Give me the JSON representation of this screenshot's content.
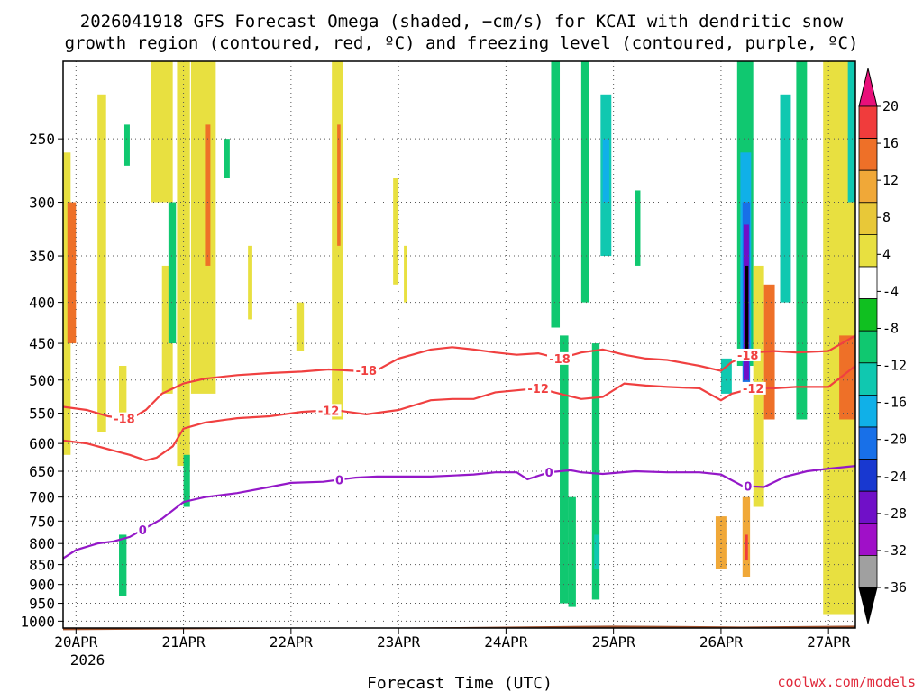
{
  "chart_data": {
    "type": "heatmap",
    "title_lines": [
      "2026041918 GFS Forecast Omega (shaded, −cm/s) for KCAI with dendritic snow",
      "growth region (contoured, red, ºC) and freezing level (contoured, purple, ºC)"
    ],
    "xlabel": "Forecast Time (UTC)",
    "credit": "coolwx.com/models",
    "x_ticks": [
      "20APR",
      "21APR",
      "22APR",
      "23APR",
      "24APR",
      "25APR",
      "26APR",
      "27APR"
    ],
    "x_year": "2026",
    "x_range_days": [
      -0.12,
      7.25
    ],
    "y_ticks": [
      250,
      300,
      350,
      400,
      450,
      500,
      550,
      600,
      650,
      700,
      750,
      800,
      850,
      900,
      950,
      1000
    ],
    "y_range_hpa": [
      200,
      1020
    ],
    "colorbar": {
      "labels": [
        "20",
        "16",
        "12",
        "8",
        "4",
        "-4",
        "-8",
        "-12",
        "-16",
        "-20",
        "-24",
        "-28",
        "-32",
        "-36"
      ],
      "colors": [
        "#e8107a",
        "#f03c3c",
        "#ee7028",
        "#f0a838",
        "#e8c838",
        "#e8e040",
        "#ffffff",
        "#10c020",
        "#10c870",
        "#10c8b0",
        "#10b0e8",
        "#1870e8",
        "#1838d0",
        "#7010c8",
        "#a010c8",
        "#a0a0a0",
        "#000000"
      ]
    },
    "series": [
      {
        "name": "-18",
        "color": "#f04040",
        "days": [
          -0.12,
          0.1,
          0.3,
          0.5,
          0.65,
          0.8,
          1.0,
          1.2,
          1.5,
          1.8,
          2.1,
          2.35,
          2.6,
          2.8,
          3.0,
          3.3,
          3.5,
          3.7,
          3.9,
          4.1,
          4.3,
          4.5,
          4.7,
          4.9,
          5.1,
          5.3,
          5.5,
          5.8,
          6.0,
          6.1,
          6.3,
          6.5,
          6.7,
          7.0,
          7.25
        ],
        "pressure_hpa": [
          540,
          545,
          555,
          560,
          545,
          520,
          505,
          498,
          493,
          490,
          488,
          485,
          487,
          486,
          470,
          458,
          455,
          458,
          462,
          465,
          463,
          470,
          462,
          458,
          465,
          470,
          472,
          480,
          487,
          475,
          462,
          460,
          462,
          460,
          440
        ],
        "labels": [
          {
            "text": "-18",
            "day": 0.45
          },
          {
            "text": "-18",
            "day": 2.7
          },
          {
            "text": "-18",
            "day": 4.5
          },
          {
            "text": "-18",
            "day": 6.25
          }
        ]
      },
      {
        "name": "-12",
        "color": "#f04040",
        "days": [
          -0.12,
          0.1,
          0.3,
          0.5,
          0.65,
          0.75,
          0.9,
          1.0,
          1.2,
          1.5,
          1.8,
          2.1,
          2.4,
          2.7,
          3.0,
          3.3,
          3.5,
          3.7,
          3.9,
          4.1,
          4.3,
          4.5,
          4.7,
          4.9,
          5.1,
          5.3,
          5.5,
          5.8,
          6.0,
          6.1,
          6.3,
          6.5,
          6.7,
          7.0,
          7.25
        ],
        "pressure_hpa": [
          595,
          600,
          610,
          620,
          630,
          625,
          605,
          575,
          565,
          558,
          555,
          548,
          545,
          552,
          545,
          530,
          528,
          528,
          518,
          515,
          512,
          520,
          528,
          525,
          505,
          508,
          510,
          512,
          530,
          520,
          512,
          512,
          510,
          510,
          480
        ],
        "labels": [
          {
            "text": "-12",
            "day": 2.35
          },
          {
            "text": "-12",
            "day": 4.3
          },
          {
            "text": "-12",
            "day": 6.3
          }
        ]
      },
      {
        "name": "0",
        "color": "#9418c8",
        "days": [
          -0.12,
          0.0,
          0.2,
          0.35,
          0.5,
          0.8,
          1.0,
          1.2,
          1.5,
          1.8,
          2.0,
          2.3,
          2.6,
          2.8,
          3.0,
          3.3,
          3.5,
          3.7,
          3.9,
          4.1,
          4.2,
          4.4,
          4.6,
          4.7,
          4.9,
          5.2,
          5.5,
          5.8,
          6.0,
          6.2,
          6.4,
          6.6,
          6.8,
          7.0,
          7.25
        ],
        "pressure_hpa": [
          835,
          815,
          800,
          795,
          785,
          745,
          710,
          700,
          692,
          680,
          672,
          670,
          662,
          660,
          660,
          660,
          658,
          656,
          652,
          652,
          665,
          652,
          648,
          652,
          655,
          650,
          652,
          652,
          656,
          678,
          680,
          660,
          650,
          645,
          640
        ],
        "labels": [
          {
            "text": "0",
            "day": 0.62
          },
          {
            "text": "0",
            "day": 2.45
          },
          {
            "text": "0",
            "day": 4.4
          },
          {
            "text": "0",
            "day": 6.25
          }
        ]
      }
    ],
    "omega_cells": [
      {
        "d0": -0.12,
        "d1": -0.05,
        "p0": 260,
        "p1": 620,
        "v": 6
      },
      {
        "d0": -0.08,
        "d1": 0.0,
        "p0": 300,
        "p1": 450,
        "v": 12
      },
      {
        "d0": 0.2,
        "d1": 0.28,
        "p0": 220,
        "p1": 580,
        "v": 6
      },
      {
        "d0": 0.4,
        "d1": 0.47,
        "p0": 480,
        "p1": 560,
        "v": 6
      },
      {
        "d0": 0.4,
        "d1": 0.47,
        "p0": 780,
        "p1": 930,
        "v": -8
      },
      {
        "d0": 0.45,
        "d1": 0.5,
        "p0": 240,
        "p1": 270,
        "v": -8
      },
      {
        "d0": 0.7,
        "d1": 0.9,
        "p0": 200,
        "p1": 300,
        "v": 6
      },
      {
        "d0": 0.8,
        "d1": 0.9,
        "p0": 360,
        "p1": 520,
        "v": 6
      },
      {
        "d0": 0.86,
        "d1": 0.93,
        "p0": 300,
        "p1": 450,
        "v": -8
      },
      {
        "d0": 0.94,
        "d1": 1.06,
        "p0": 200,
        "p1": 640,
        "v": 6
      },
      {
        "d0": 1.0,
        "d1": 1.06,
        "p0": 620,
        "p1": 720,
        "v": -8
      },
      {
        "d0": 1.07,
        "d1": 1.3,
        "p0": 200,
        "p1": 520,
        "v": 6
      },
      {
        "d0": 1.2,
        "d1": 1.25,
        "p0": 240,
        "p1": 360,
        "v": 12
      },
      {
        "d0": 1.38,
        "d1": 1.43,
        "p0": 250,
        "p1": 280,
        "v": -8
      },
      {
        "d0": 1.6,
        "d1": 1.64,
        "p0": 340,
        "p1": 420,
        "v": 6
      },
      {
        "d0": 2.05,
        "d1": 2.12,
        "p0": 400,
        "p1": 460,
        "v": 6
      },
      {
        "d0": 2.38,
        "d1": 2.48,
        "p0": 200,
        "p1": 560,
        "v": 6
      },
      {
        "d0": 2.43,
        "d1": 2.46,
        "p0": 240,
        "p1": 340,
        "v": 12
      },
      {
        "d0": 2.95,
        "d1": 3.0,
        "p0": 280,
        "p1": 380,
        "v": 6
      },
      {
        "d0": 3.05,
        "d1": 3.08,
        "p0": 340,
        "p1": 400,
        "v": 6
      },
      {
        "d0": 4.42,
        "d1": 4.5,
        "p0": 200,
        "p1": 430,
        "v": -8
      },
      {
        "d0": 4.5,
        "d1": 4.58,
        "p0": 440,
        "p1": 950,
        "v": -8
      },
      {
        "d0": 4.58,
        "d1": 4.65,
        "p0": 700,
        "p1": 960,
        "v": -10
      },
      {
        "d0": 4.7,
        "d1": 4.77,
        "p0": 200,
        "p1": 400,
        "v": -8
      },
      {
        "d0": 4.8,
        "d1": 4.87,
        "p0": 450,
        "p1": 940,
        "v": -8
      },
      {
        "d0": 4.82,
        "d1": 4.86,
        "p0": 780,
        "p1": 860,
        "v": -13
      },
      {
        "d0": 4.88,
        "d1": 4.98,
        "p0": 220,
        "p1": 350,
        "v": -12
      },
      {
        "d0": 4.9,
        "d1": 4.96,
        "p0": 250,
        "p1": 300,
        "v": -18
      },
      {
        "d0": 5.2,
        "d1": 5.25,
        "p0": 290,
        "p1": 360,
        "v": -8
      },
      {
        "d0": 5.95,
        "d1": 6.05,
        "p0": 740,
        "p1": 860,
        "v": 10
      },
      {
        "d0": 6.0,
        "d1": 6.1,
        "p0": 470,
        "p1": 520,
        "v": -14
      },
      {
        "d0": 6.15,
        "d1": 6.3,
        "p0": 200,
        "p1": 480,
        "v": -10
      },
      {
        "d0": 6.18,
        "d1": 6.28,
        "p0": 260,
        "p1": 460,
        "v": -18
      },
      {
        "d0": 6.2,
        "d1": 6.27,
        "p0": 300,
        "p1": 520,
        "v": -22
      },
      {
        "d0": 6.21,
        "d1": 6.26,
        "p0": 320,
        "p1": 500,
        "v": -30
      },
      {
        "d0": 6.22,
        "d1": 6.255,
        "p0": 360,
        "p1": 470,
        "v": -38
      },
      {
        "d0": 6.2,
        "d1": 6.27,
        "p0": 700,
        "p1": 880,
        "v": 10
      },
      {
        "d0": 6.22,
        "d1": 6.25,
        "p0": 780,
        "p1": 840,
        "v": 18
      },
      {
        "d0": 6.3,
        "d1": 6.4,
        "p0": 360,
        "p1": 720,
        "v": 6
      },
      {
        "d0": 6.4,
        "d1": 6.5,
        "p0": 380,
        "p1": 560,
        "v": 12
      },
      {
        "d0": 6.55,
        "d1": 6.65,
        "p0": 220,
        "p1": 400,
        "v": -12
      },
      {
        "d0": 6.7,
        "d1": 6.8,
        "p0": 200,
        "p1": 560,
        "v": -8
      },
      {
        "d0": 6.95,
        "d1": 7.25,
        "p0": 200,
        "p1": 980,
        "v": 6
      },
      {
        "d0": 7.1,
        "d1": 7.25,
        "p0": 440,
        "p1": 560,
        "v": 14
      },
      {
        "d0": 7.18,
        "d1": 7.25,
        "p0": 200,
        "p1": 300,
        "v": -14
      }
    ]
  }
}
